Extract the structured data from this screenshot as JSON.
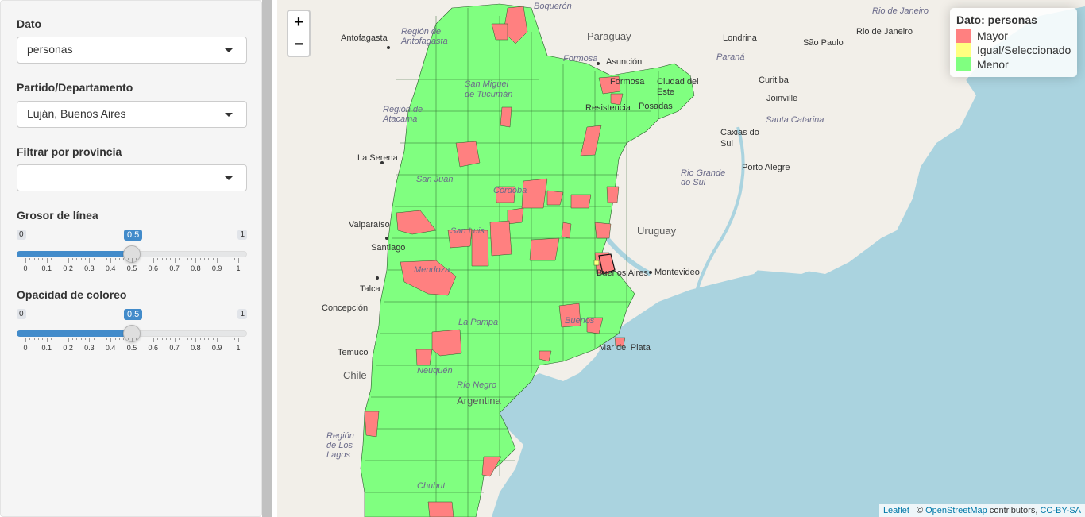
{
  "sidebar": {
    "dato": {
      "label": "Dato",
      "value": "personas"
    },
    "partido": {
      "label": "Partido/Departamento",
      "value": "Luján, Buenos Aires"
    },
    "provincia": {
      "label": "Filtrar por provincia",
      "value": ""
    },
    "grosor": {
      "label": "Grosor de línea",
      "min": "0",
      "max": "1",
      "value": "0.5",
      "fraction": 0.5,
      "ticks": [
        "0",
        "0.1",
        "0.2",
        "0.3",
        "0.4",
        "0.5",
        "0.6",
        "0.7",
        "0.8",
        "0.9",
        "1"
      ]
    },
    "opacidad": {
      "label": "Opacidad de coloreo",
      "min": "0",
      "max": "1",
      "value": "0.5",
      "fraction": 0.5,
      "ticks": [
        "0",
        "0.1",
        "0.2",
        "0.3",
        "0.4",
        "0.5",
        "0.6",
        "0.7",
        "0.8",
        "0.9",
        "1"
      ]
    }
  },
  "map": {
    "zoom_in": "+",
    "zoom_out": "−",
    "legend": {
      "title": "Dato: personas",
      "items": [
        {
          "label": "Mayor",
          "color": "#ff8080"
        },
        {
          "label": "Igual/Seleccionado",
          "color": "#ffff80"
        },
        {
          "label": "Menor",
          "color": "#80ff80"
        }
      ]
    },
    "labels": {
      "boqueron": "Boquerón",
      "paraguay": "Paraguay",
      "londrina": "Londrina",
      "saopaulo": "São Paulo",
      "riodejaneiro": "Rio de Janeiro",
      "riodejaneiro2": "Rio de Janeiro",
      "antofagasta": "Antofagasta",
      "regionantofagasta": "Región de Antofagasta",
      "formosa": "Formosa",
      "formosa2": "Formosa",
      "asuncion": "Asunción",
      "parana": "Paraná",
      "curitiba": "Curitiba",
      "joinville": "Joinville",
      "santacatarina": "Santa Catarina",
      "ciudaddeleste": "Ciudad del Este",
      "posadas": "Posadas",
      "resistencia": "Resistencia",
      "sanmiguel": "San Miguel de Tucumán",
      "regionatacama": "Región de Atacama",
      "caxias": "Caxias do Sul",
      "laserena": "La Serena",
      "riogrande": "Rio Grande do Sul",
      "portoalegre": "Porto Alegre",
      "sanjuan": "San Juan",
      "cordoba": "Córdoba",
      "valparaiso": "Valparaíso",
      "santiago": "Santiago",
      "uruguay": "Uruguay",
      "sanluis": "San Luis",
      "mendoza": "Mendoza",
      "montevideo": "Montevideo",
      "buenosaires": "Buenos Aires",
      "talca": "Talca",
      "concepcion": "Concepción",
      "lapampa": "La Pampa",
      "buenos": "Buenos",
      "mardelplata": "Mar del Plata",
      "temuco": "Temuco",
      "chile": "Chile",
      "neuquen": "Neuquén",
      "rionegro": "Río Negro",
      "argentina": "Argentina",
      "regionlagos": "Región de Los Lagos",
      "chubut": "Chubut"
    },
    "attribution": {
      "leaflet": "Leaflet",
      "sep": "| ©",
      "osm": "OpenStreetMap",
      "contrib": "contributors,",
      "license": "CC-BY-SA"
    }
  }
}
